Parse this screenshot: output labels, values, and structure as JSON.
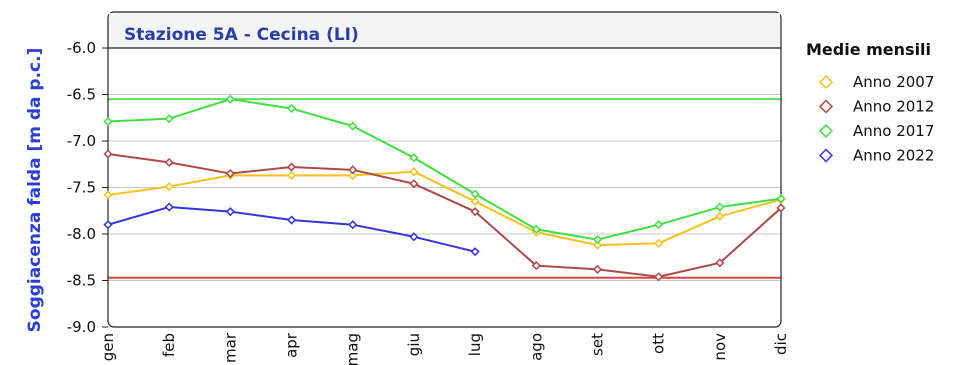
{
  "chart_data": {
    "type": "line",
    "title": "Stazione 5A - Cecina (LI)",
    "ylabel": "Soggiacenza falda [m da p.c.]",
    "xlabel": "",
    "categories": [
      "gen",
      "feb",
      "mar",
      "apr",
      "mag",
      "giu",
      "lug",
      "ago",
      "set",
      "ott",
      "nov",
      "dic"
    ],
    "ylim": [
      -9.0,
      -6.0
    ],
    "yticks": [
      "-6.0",
      "-6.5",
      "-7.0",
      "-7.5",
      "-8.0",
      "-8.5",
      "-9.0"
    ],
    "ytick_values": [
      -6.0,
      -6.5,
      -7.0,
      -7.5,
      -8.0,
      -8.5,
      -9.0
    ],
    "grid": true,
    "legend": {
      "title": "Medie mensili",
      "position": "right"
    },
    "reference_lines": [
      {
        "value": -6.55,
        "color": "#55e055"
      },
      {
        "value": -8.47,
        "color": "#dd4444"
      }
    ],
    "series": [
      {
        "name": "Anno 2007",
        "color": "#f7c21c",
        "values": [
          -7.58,
          -7.49,
          -7.37,
          -7.37,
          -7.37,
          -7.33,
          -7.65,
          -7.98,
          -8.12,
          -8.1,
          -7.81,
          -7.63
        ]
      },
      {
        "name": "Anno 2012",
        "color": "#b04848",
        "values": [
          -7.14,
          -7.23,
          -7.35,
          -7.28,
          -7.31,
          -7.46,
          -7.76,
          -8.34,
          -8.38,
          -8.46,
          -8.31,
          -7.72
        ]
      },
      {
        "name": "Anno 2017",
        "color": "#3fe03f",
        "values": [
          -6.79,
          -6.76,
          -6.55,
          -6.65,
          -6.84,
          -7.18,
          -7.57,
          -7.95,
          -8.06,
          -7.9,
          -7.71,
          -7.62
        ]
      },
      {
        "name": "Anno 2022",
        "color": "#3434e0",
        "values": [
          -7.9,
          -7.71,
          -7.76,
          -7.85,
          -7.9,
          -8.03,
          -8.19,
          null,
          null,
          null,
          null,
          null
        ]
      }
    ]
  }
}
